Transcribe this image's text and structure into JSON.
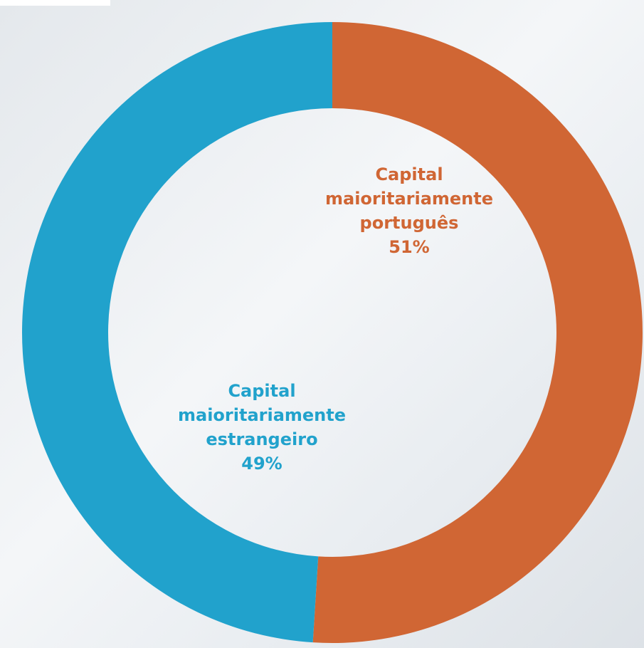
{
  "chart_data": {
    "type": "donut",
    "categories": [
      "Capital maioritariamente português",
      "Capital maioritariamente estrangeiro"
    ],
    "values": [
      51,
      49
    ],
    "value_labels": [
      "51%",
      "49%"
    ],
    "colors": [
      "#d06634",
      "#21a2cc"
    ]
  }
}
